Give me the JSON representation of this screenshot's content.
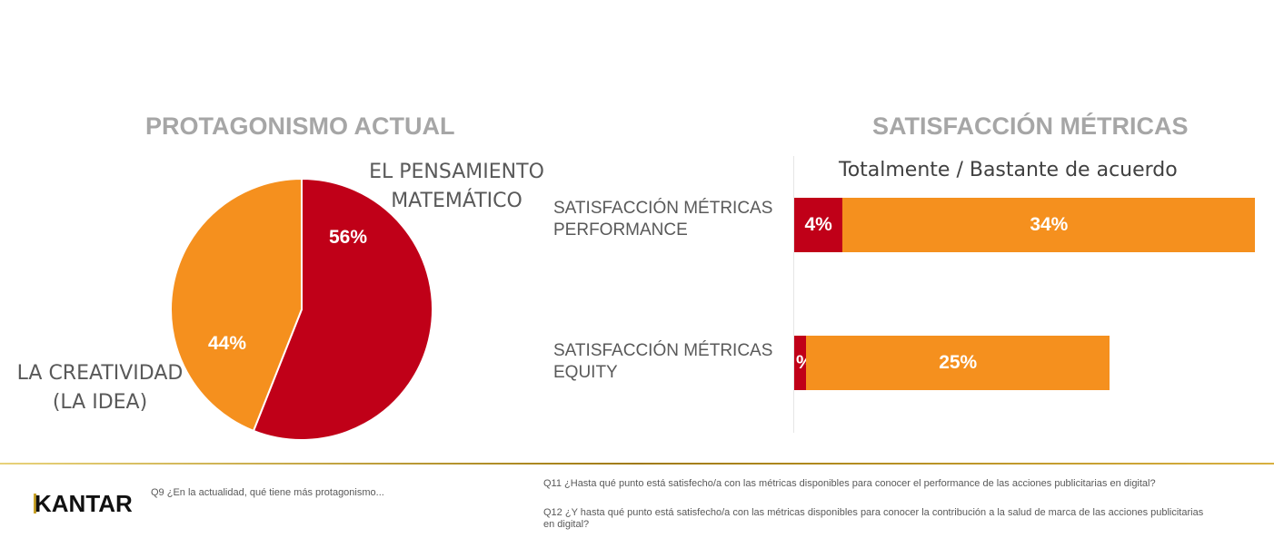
{
  "chart_data": [
    {
      "type": "pie",
      "title": "PROTAGONISMO ACTUAL",
      "slices": [
        {
          "name": "EL PENSAMIENTO MATEMÁTICO",
          "value": 56,
          "label": "56%",
          "color": "#c00018"
        },
        {
          "name": "LA CREATIVIDAD (LA IDEA)",
          "value": 44,
          "label": "44%",
          "color": "#f5901e"
        }
      ]
    },
    {
      "type": "bar",
      "orientation": "horizontal",
      "stacked": true,
      "title": "SATISFACCIÓN MÉTRICAS",
      "subtitle": "Totalmente / Bastante de acuerdo",
      "categories": [
        "SATISFACCIÓN MÉTRICAS PERFORMANCE",
        "SATISFACCIÓN MÉTRICAS EQUITY"
      ],
      "series": [
        {
          "color": "#c00018",
          "values": [
            4,
            1
          ],
          "labels": [
            "4%",
            "%"
          ]
        },
        {
          "color": "#f5901e",
          "values": [
            34,
            25
          ],
          "labels": [
            "34%",
            "25%"
          ]
        }
      ]
    }
  ],
  "footer": {
    "logo": "KANTAR",
    "q9": "Q9 ¿En la actualidad, qué tiene más protagonismo...",
    "q11": "Q11 ¿Hasta qué punto está satisfecho/a con las métricas disponibles para conocer el performance de las acciones publicitarias en digital?",
    "q12": "Q12 ¿Y hasta qué punto está satisfecho/a con las métricas disponibles para conocer la contribución a la salud de marca de las acciones publicitarias en digital?"
  }
}
